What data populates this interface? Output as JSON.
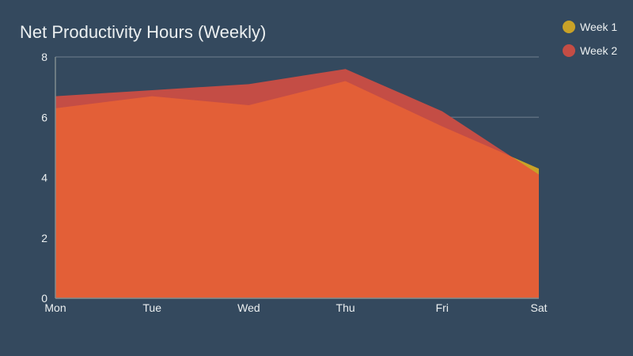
{
  "chart_data": {
    "type": "area",
    "title": "Net Productivity Hours (Weekly)",
    "xlabel": "",
    "ylabel": "",
    "categories": [
      "Mon",
      "Tue",
      "Wed",
      "Thu",
      "Fri",
      "Sat"
    ],
    "ylim": [
      0,
      8
    ],
    "yticks": [
      "0",
      "2",
      "4",
      "6",
      "8"
    ],
    "grid": true,
    "legend": "top-right",
    "overlap_color": "#e35f37",
    "series": [
      {
        "name": "Week 1",
        "color": "#c9a227",
        "values": [
          6.3,
          6.7,
          6.4,
          7.2,
          5.7,
          4.3
        ]
      },
      {
        "name": "Week 2",
        "color": "#c44d45",
        "values": [
          6.7,
          6.9,
          7.1,
          7.6,
          6.2,
          4.1
        ]
      }
    ]
  }
}
